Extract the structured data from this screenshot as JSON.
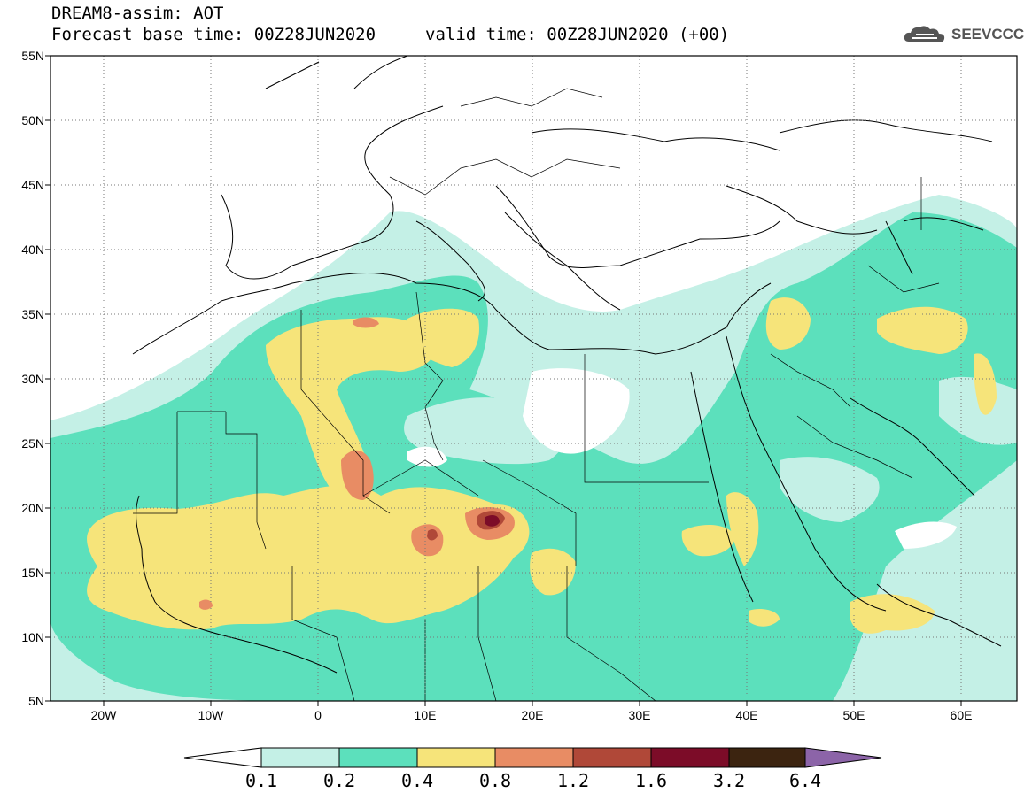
{
  "header": {
    "title": "DREAM8-assim: AOT",
    "base_time": "Forecast base time: 00Z28JUN2020",
    "valid_time": "valid time: 00Z28JUN2020 (+00)",
    "logo_text": "SEEVCCC",
    "logo_icon": "cloud-icon"
  },
  "map": {
    "lon_range": [
      -25,
      65
    ],
    "lat_range": [
      5,
      55
    ],
    "lat_ticks": [
      "55N",
      "50N",
      "45N",
      "40N",
      "35N",
      "30N",
      "25N",
      "20N",
      "15N",
      "10N",
      "5N"
    ],
    "lon_ticks": [
      "20W",
      "10W",
      "0",
      "10E",
      "20E",
      "30E",
      "40E",
      "50E",
      "60E"
    ],
    "grid": "dotted"
  },
  "colorbar": {
    "labels": [
      "0.1",
      "0.2",
      "0.4",
      "0.8",
      "1.2",
      "1.6",
      "3.2",
      "6.4"
    ],
    "colors": [
      "#ffffff",
      "#c4f0e6",
      "#5ce0bc",
      "#f6e47a",
      "#e88c64",
      "#b04838",
      "#7c0c28",
      "#3c2410",
      "#8c64a8"
    ]
  }
}
